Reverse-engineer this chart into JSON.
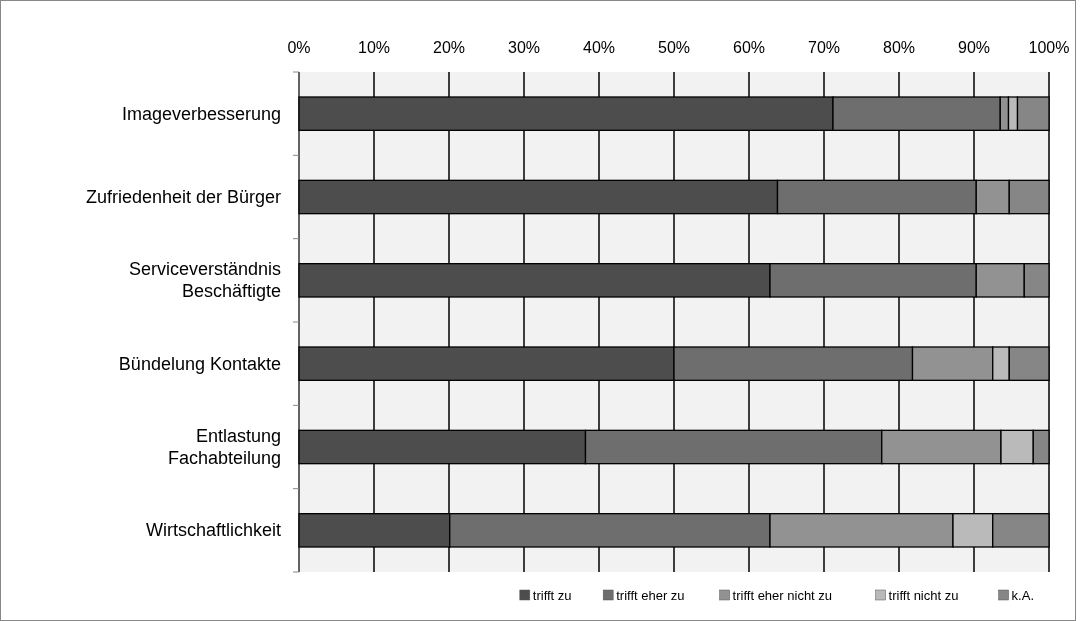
{
  "chart_data": {
    "type": "bar",
    "orientation": "horizontal",
    "stacked": true,
    "categories": [
      "Imageverbesserung",
      "Zufriedenheit der Bürger",
      "Serviceverständnis Beschäftigte",
      "Bündelung Kontakte",
      "Entlastung Fachabteilung",
      "Wirtschaftlichkeit"
    ],
    "series": [
      {
        "name": "trifft zu",
        "color": "#4d4d4d",
        "values": [
          71.2,
          63.8,
          62.8,
          50.0,
          38.2,
          20.1
        ]
      },
      {
        "name": "trifft eher zu",
        "color": "#6e6e6e",
        "values": [
          22.3,
          26.5,
          27.5,
          31.8,
          39.5,
          42.7
        ]
      },
      {
        "name": "trifft eher nicht zu",
        "color": "#929292",
        "values": [
          1.1,
          4.4,
          6.4,
          10.7,
          15.9,
          24.4
        ]
      },
      {
        "name": "trifft nicht zu",
        "color": "#bababa",
        "values": [
          1.2,
          0,
          0,
          2.2,
          4.3,
          5.3
        ]
      },
      {
        "name": "k.A.",
        "color": "#868686",
        "values": [
          4.2,
          5.3,
          3.3,
          5.3,
          2.1,
          7.5
        ]
      }
    ],
    "xlim": [
      0,
      100
    ],
    "xticks": [
      {
        "value": 0,
        "label": "0%"
      },
      {
        "value": 10,
        "label": "10%"
      },
      {
        "value": 20,
        "label": "20%"
      },
      {
        "value": 30,
        "label": "30%"
      },
      {
        "value": 40,
        "label": "40%"
      },
      {
        "value": 50,
        "label": "50%"
      },
      {
        "value": 60,
        "label": "60%"
      },
      {
        "value": 70,
        "label": "70%"
      },
      {
        "value": 80,
        "label": "80%"
      },
      {
        "value": 90,
        "label": "90%"
      },
      {
        "value": 100,
        "label": "100%"
      }
    ],
    "grid": "x",
    "legend": "bottom"
  }
}
